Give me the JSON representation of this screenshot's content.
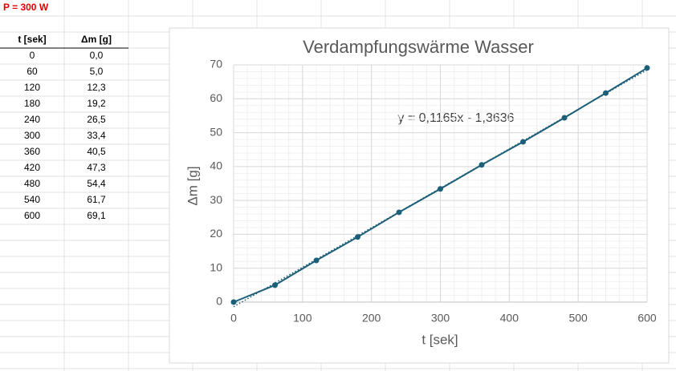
{
  "sheet": {
    "note": "P = 300 W",
    "table": {
      "header": [
        "t [sek]",
        "Δm [g]"
      ],
      "rows": [
        [
          "0",
          "0,0"
        ],
        [
          "60",
          "5,0"
        ],
        [
          "120",
          "12,3"
        ],
        [
          "180",
          "19,2"
        ],
        [
          "240",
          "26,5"
        ],
        [
          "300",
          "33,4"
        ],
        [
          "360",
          "40,5"
        ],
        [
          "420",
          "47,3"
        ],
        [
          "480",
          "54,4"
        ],
        [
          "540",
          "61,7"
        ],
        [
          "600",
          "69,1"
        ]
      ]
    }
  },
  "chart_data": {
    "type": "line",
    "title": "Verdampfungswärme Wasser",
    "x_label": "t [sek]",
    "y_label": "Δm [g]",
    "x": [
      0,
      60,
      120,
      180,
      240,
      300,
      360,
      420,
      480,
      540,
      600
    ],
    "series": [
      {
        "color": "#1c5f78",
        "values": [
          0,
          5.0,
          12.3,
          19.2,
          26.5,
          33.4,
          40.5,
          47.3,
          54.4,
          61.7,
          69.1
        ]
      }
    ],
    "trendline": {
      "slope": 0.1165,
      "intercept": -1.3636,
      "label": "y = 0,1165x - 1,3636"
    },
    "xlim": [
      0,
      600
    ],
    "xticks": [
      0,
      100,
      200,
      300,
      400,
      500,
      600
    ],
    "ylim": [
      0,
      70
    ],
    "yticks": [
      0,
      10,
      20,
      30,
      40,
      50,
      60,
      70
    ],
    "grid": true
  }
}
